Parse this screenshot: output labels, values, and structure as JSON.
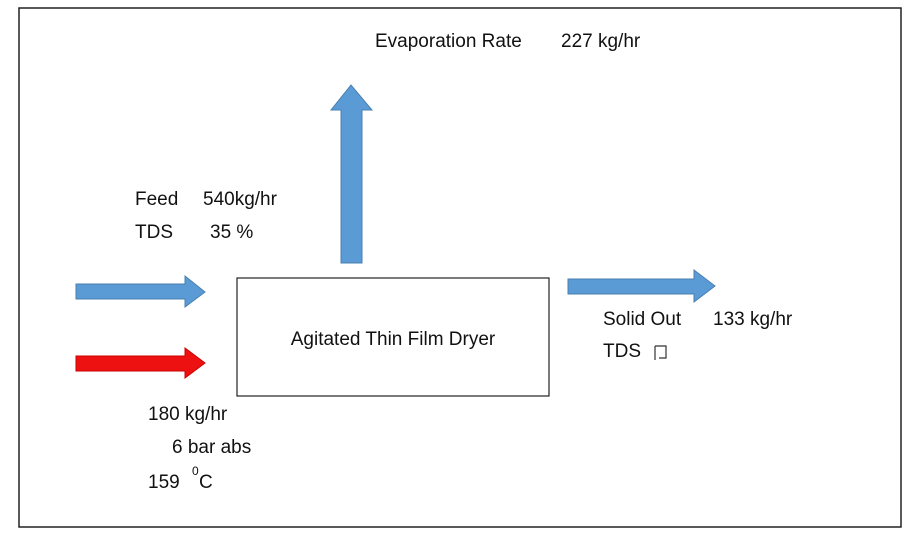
{
  "evaporation": {
    "label": "Evaporation Rate",
    "rate": "227 kg/hr"
  },
  "feed": {
    "label": "Feed",
    "rate": "540kg/hr",
    "tds_label": "TDS",
    "tds": "35 %"
  },
  "dryer": {
    "label": "Agitated Thin Film Dryer"
  },
  "solid_out": {
    "label": "Solid Out",
    "rate": "133 kg/hr",
    "tds_label": "TDS"
  },
  "steam": {
    "rate": "180 kg/hr",
    "pressure": "6 bar abs",
    "temperature": "159",
    "degree": "0",
    "unit": "C"
  }
}
